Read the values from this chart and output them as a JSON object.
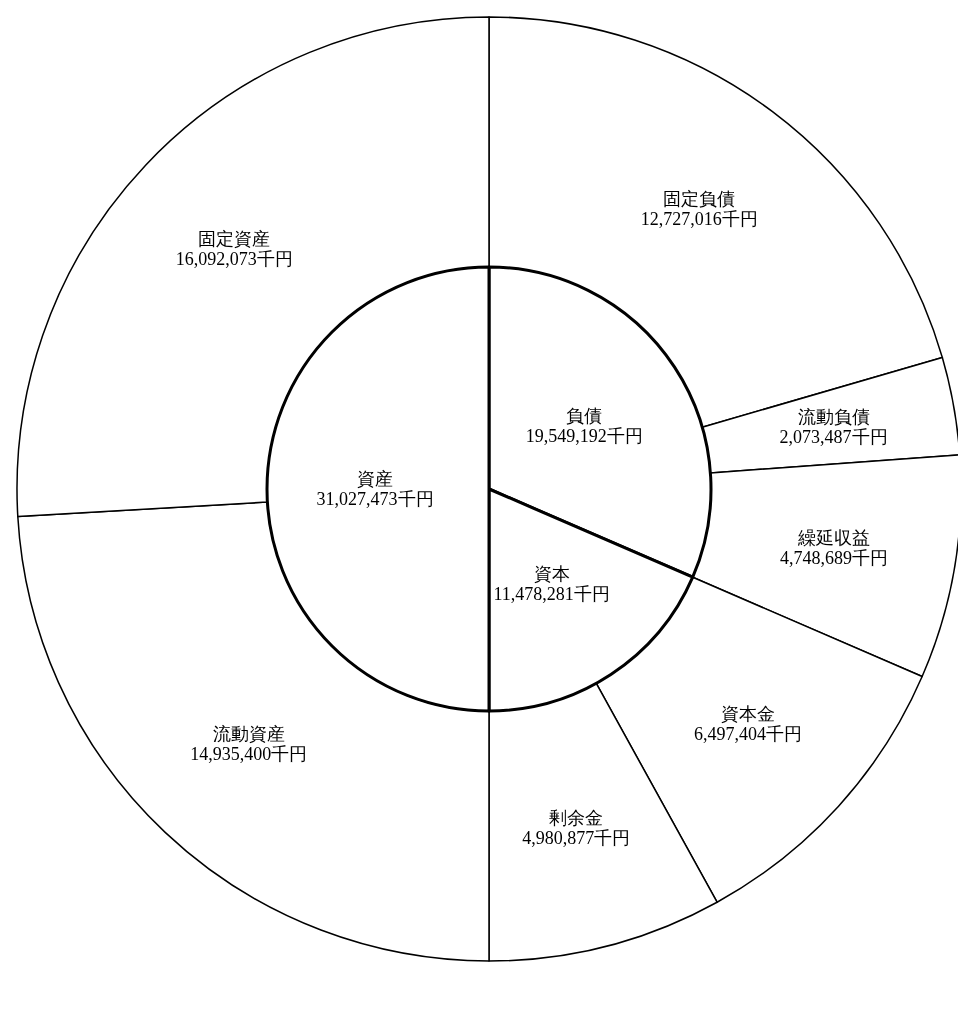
{
  "chart_data": [
    {
      "type": "donut",
      "categories": [
        "固定負債",
        "流動負債",
        "繰延収益",
        "資本金",
        "剰余金",
        "流動資産",
        "固定資産"
      ],
      "values": [
        12727016,
        2073487,
        4748689,
        6497404,
        4980877,
        14935400,
        16092073
      ],
      "value_labels": [
        "12,727,016千円",
        "2,073,487千円",
        "4,748,689千円",
        "6,497,404千円",
        "4,980,877千円",
        "14,935,400千円",
        "16,092,073千円"
      ],
      "colors": [
        "#ffffff",
        "#ffffff",
        "#ffffff",
        "#ffffff",
        "#ffffff",
        "#ffffff",
        "#ffffff"
      ]
    },
    {
      "type": "pie",
      "categories": [
        "負債",
        "資本",
        "資産"
      ],
      "values": [
        19549192,
        11478281,
        31027473
      ],
      "value_labels": [
        "19,549,192千円",
        "11,478,281千円",
        "31,027,473千円"
      ],
      "colors": [
        "#ffffff",
        "#ffffff",
        "#ffffff"
      ]
    }
  ]
}
